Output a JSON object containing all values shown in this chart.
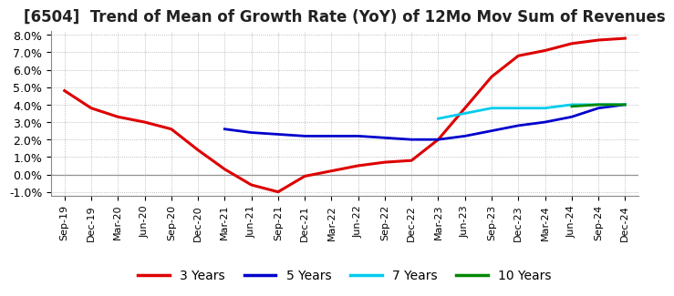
{
  "title": "[6504]  Trend of Mean of Growth Rate (YoY) of 12Mo Mov Sum of Revenues",
  "title_fontsize": 12,
  "background_color": "#ffffff",
  "grid_color": "#aaaaaa",
  "ylim": [
    -0.012,
    0.082
  ],
  "yticks": [
    -0.01,
    0.0,
    0.01,
    0.02,
    0.03,
    0.04,
    0.05,
    0.06,
    0.07,
    0.08
  ],
  "x_labels": [
    "Sep-19",
    "Dec-19",
    "Mar-20",
    "Jun-20",
    "Sep-20",
    "Dec-20",
    "Mar-21",
    "Jun-21",
    "Sep-21",
    "Dec-21",
    "Mar-22",
    "Jun-22",
    "Sep-22",
    "Dec-22",
    "Mar-23",
    "Jun-23",
    "Sep-23",
    "Dec-23",
    "Mar-24",
    "Jun-24",
    "Sep-24",
    "Dec-24"
  ],
  "series": {
    "3 Years": {
      "color": "#dd0000",
      "linewidth": 2.2,
      "data": [
        [
          0,
          0.048
        ],
        [
          1,
          0.038
        ],
        [
          2,
          0.033
        ],
        [
          3,
          0.03
        ],
        [
          4,
          0.026
        ],
        [
          5,
          0.014
        ],
        [
          6,
          0.003
        ],
        [
          7,
          -0.006
        ],
        [
          8,
          -0.01
        ],
        [
          9,
          -0.001
        ],
        [
          10,
          0.002
        ],
        [
          11,
          0.005
        ],
        [
          12,
          0.007
        ],
        [
          13,
          0.008
        ],
        [
          14,
          0.02
        ],
        [
          15,
          0.038
        ],
        [
          16,
          0.056
        ],
        [
          17,
          0.068
        ],
        [
          18,
          0.071
        ],
        [
          19,
          0.075
        ],
        [
          20,
          0.077
        ],
        [
          21,
          0.078
        ]
      ]
    },
    "5 Years": {
      "color": "#0000cc",
      "linewidth": 2.0,
      "data": [
        [
          6,
          0.026
        ],
        [
          7,
          0.024
        ],
        [
          8,
          0.023
        ],
        [
          9,
          0.022
        ],
        [
          10,
          0.022
        ],
        [
          11,
          0.022
        ],
        [
          12,
          0.021
        ],
        [
          13,
          0.02
        ],
        [
          14,
          0.02
        ],
        [
          15,
          0.022
        ],
        [
          16,
          0.025
        ],
        [
          17,
          0.028
        ],
        [
          18,
          0.03
        ],
        [
          19,
          0.033
        ],
        [
          20,
          0.038
        ],
        [
          21,
          0.04
        ]
      ]
    },
    "7 Years": {
      "color": "#00ccee",
      "linewidth": 2.0,
      "data": [
        [
          14,
          0.032
        ],
        [
          15,
          0.035
        ],
        [
          16,
          0.038
        ],
        [
          17,
          0.038
        ],
        [
          18,
          0.038
        ],
        [
          19,
          0.04
        ],
        [
          20,
          0.04
        ],
        [
          21,
          0.04
        ]
      ]
    },
    "10 Years": {
      "color": "#008800",
      "linewidth": 2.0,
      "data": [
        [
          19,
          0.039
        ],
        [
          20,
          0.04
        ],
        [
          21,
          0.04
        ]
      ]
    }
  },
  "legend_labels": [
    "3 Years",
    "5 Years",
    "7 Years",
    "10 Years"
  ],
  "legend_colors": [
    "#dd0000",
    "#0000cc",
    "#00ccee",
    "#008800"
  ]
}
